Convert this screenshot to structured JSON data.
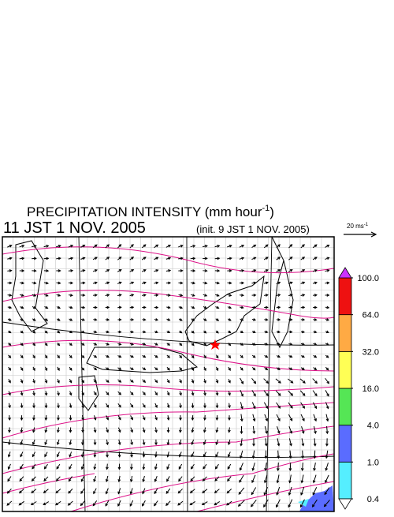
{
  "title": {
    "text": "PRECIPITATION INTENSITY (mm hour",
    "unit_exponent": "-1",
    "close": ")"
  },
  "valid_time": "11 JST 1 NOV. 2005",
  "init_time": "(init. 9 JST 1 NOV. 2005)",
  "wind_scale": {
    "text": "20 ms",
    "exponent": "-1"
  },
  "colorbar": {
    "levels": [
      {
        "value": 0.4,
        "label": "0.4"
      },
      {
        "value": 1,
        "label": "1.0"
      },
      {
        "value": 4,
        "label": "4.0"
      },
      {
        "value": 16,
        "label": "16.0"
      },
      {
        "value": 32,
        "label": "32.0"
      },
      {
        "value": 64,
        "label": "64.0"
      },
      {
        "value": 100,
        "label": "100.0"
      }
    ],
    "colors": [
      "#55eeff",
      "#5a6cff",
      "#55e655",
      "#ffff55",
      "#ffaa44",
      "#ee1111"
    ],
    "over_color": "#cc33ff",
    "under_color": "#ffffff"
  }
}
